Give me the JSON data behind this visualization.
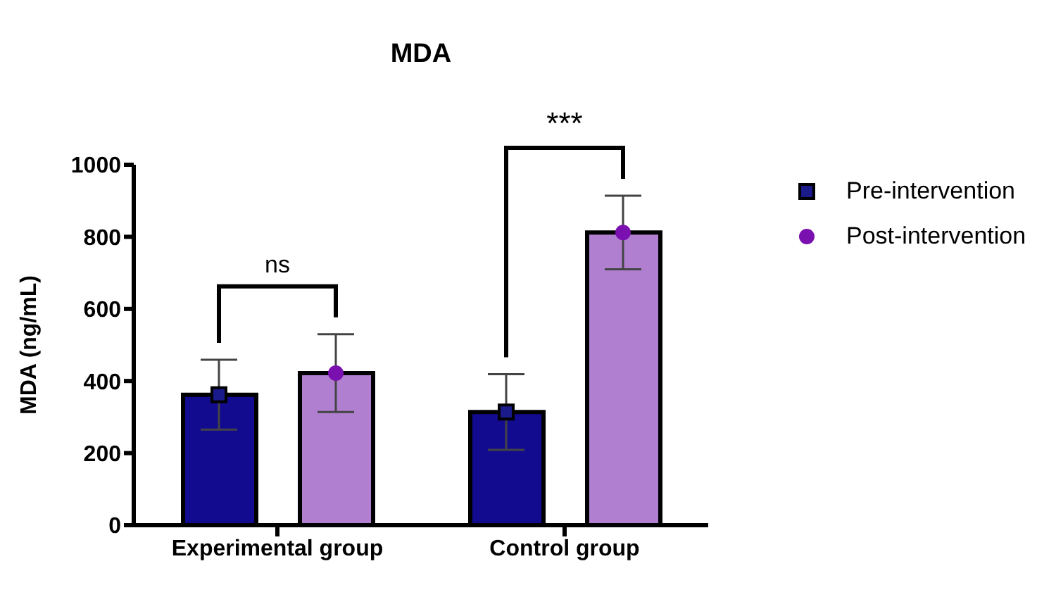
{
  "chart_data": {
    "type": "bar",
    "title": "MDA",
    "ylabel": "MDA (ng/mL)",
    "categories": [
      "Experimental group",
      "Control group"
    ],
    "series": [
      {
        "color": "#120a8f",
        "values": [
          362,
          314
        ]
      },
      {
        "color": "#b07fd0",
        "values": [
          422,
          812
        ]
      },
      {
        "type": "scatter",
        "name": "Pre-intervention",
        "color": "#1a1a8a",
        "marker": "square",
        "x": [
          "Experimental group",
          "Control group"
        ],
        "values": [
          362,
          314
        ],
        "errors": [
          97,
          105
        ]
      },
      {
        "type": "scatter",
        "name": "Post-intervention",
        "color": "#7a10b0",
        "marker": "circle",
        "x": [
          "Experimental group",
          "Control group"
        ],
        "values": [
          422,
          812
        ],
        "errors": [
          108,
          102
        ]
      }
    ],
    "ylim": [
      0,
      1000
    ],
    "yticks": [
      0,
      200,
      400,
      600,
      800,
      1000
    ],
    "grid": false,
    "legend": "top right",
    "annotations": [
      "ns",
      "***"
    ]
  }
}
